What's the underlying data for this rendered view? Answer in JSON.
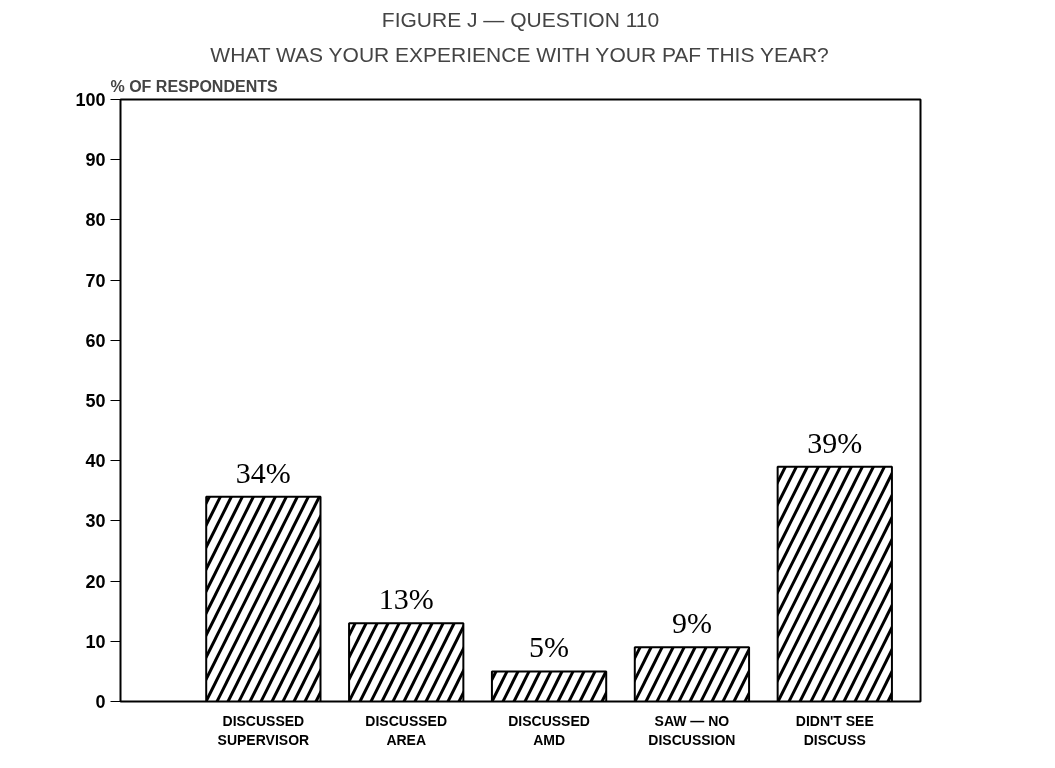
{
  "chart_data": {
    "type": "bar",
    "title": "FIGURE J — QUESTION 110",
    "subtitle": "WHAT WAS YOUR EXPERIENCE WITH YOUR PAF THIS YEAR?",
    "ylabel": "% OF RESPONDENTS",
    "categories": [
      "DISCUSSED\nSUPERVISOR",
      "DISCUSSED\nAREA",
      "DISCUSSED\nAMD",
      "SAW — NO\nDISCUSSION",
      "DIDN'T SEE\nDISCUSS"
    ],
    "values": [
      34,
      13,
      5,
      9,
      39
    ],
    "value_labels": [
      "34%",
      "13%",
      "5%",
      "9%",
      "39%"
    ],
    "color": "#000000",
    "ylim": [
      0,
      100
    ],
    "yticks": [
      0,
      10,
      20,
      30,
      40,
      50,
      60,
      70,
      80,
      90,
      100
    ],
    "grid": false
  }
}
